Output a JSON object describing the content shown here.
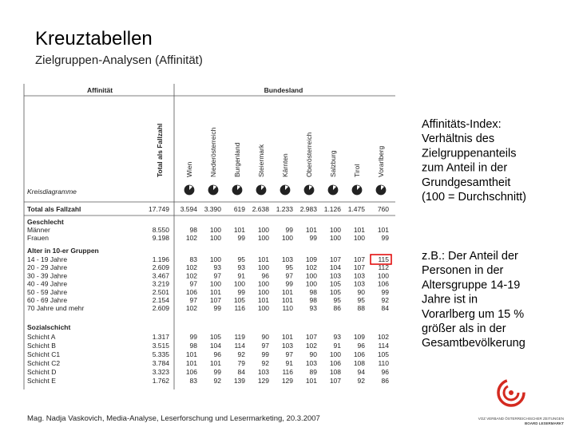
{
  "header": {
    "title": "Kreuztabellen",
    "subtitle": "Zielgruppen-Analysen (Affinität)"
  },
  "table": {
    "corner": "Affinität",
    "group": "Bundesland",
    "columns": [
      "Total als Fallzahl",
      "Wien",
      "Niederösterreich",
      "Burgenland",
      "Steiermark",
      "Kärnten",
      "Oberösterreich",
      "Salzburg",
      "Tirol",
      "Vorarlberg"
    ],
    "pie_row_label": "Kreisdiagramme",
    "total": {
      "label": "Total als Fallzahl",
      "values": [
        "17.749",
        "3.594",
        "3.390",
        "619",
        "2.638",
        "1.233",
        "2.983",
        "1.126",
        "1.475",
        "760"
      ]
    },
    "sections": [
      {
        "title": "Geschlecht",
        "rows": [
          {
            "label": "Männer",
            "values": [
              "8.550",
              98,
              100,
              101,
              100,
              99,
              101,
              100,
              101,
              101
            ]
          },
          {
            "label": "Frauen",
            "values": [
              "9.198",
              102,
              100,
              99,
              100,
              100,
              99,
              100,
              100,
              99
            ]
          }
        ]
      },
      {
        "title": "Alter in 10-er Gruppen",
        "rows": [
          {
            "label": "14 - 19 Jahre",
            "values": [
              "1.196",
              83,
              100,
              95,
              101,
              103,
              109,
              107,
              107,
              115
            ]
          },
          {
            "label": "20 - 29 Jahre",
            "values": [
              "2.609",
              102,
              93,
              93,
              100,
              95,
              102,
              104,
              107,
              112
            ]
          },
          {
            "label": "30 - 39 Jahre",
            "values": [
              "3.467",
              102,
              97,
              91,
              96,
              97,
              100,
              103,
              103,
              100
            ]
          },
          {
            "label": "40 - 49 Jahre",
            "values": [
              "3.219",
              97,
              100,
              100,
              100,
              99,
              100,
              105,
              103,
              106
            ]
          },
          {
            "label": "50 - 59 Jahre",
            "values": [
              "2.501",
              106,
              101,
              99,
              100,
              101,
              98,
              105,
              90,
              99
            ]
          },
          {
            "label": "60 - 69 Jahre",
            "values": [
              "2.154",
              97,
              107,
              105,
              101,
              101,
              98,
              95,
              95,
              92
            ]
          },
          {
            "label": "70 Jahre und mehr",
            "values": [
              "2.609",
              102,
              99,
              116,
              100,
              110,
              93,
              86,
              88,
              84
            ]
          }
        ]
      },
      {
        "title": "Sozialschicht",
        "rows": [
          {
            "label": "Schicht A",
            "values": [
              "1.317",
              99,
              105,
              119,
              90,
              101,
              107,
              93,
              109,
              102
            ]
          },
          {
            "label": "Schicht B",
            "values": [
              "3.515",
              98,
              104,
              114,
              97,
              103,
              102,
              91,
              96,
              114
            ]
          },
          {
            "label": "Schicht C1",
            "values": [
              "5.335",
              101,
              96,
              92,
              99,
              97,
              90,
              100,
              106,
              105
            ]
          },
          {
            "label": "Schicht C2",
            "values": [
              "3.784",
              101,
              101,
              79,
              92,
              91,
              103,
              106,
              108,
              110
            ]
          },
          {
            "label": "Schicht D",
            "values": [
              "3.323",
              106,
              99,
              84,
              103,
              116,
              89,
              108,
              94,
              96
            ]
          },
          {
            "label": "Schicht E",
            "values": [
              "1.762",
              83,
              92,
              139,
              129,
              129,
              101,
              107,
              92,
              86
            ]
          }
        ]
      }
    ],
    "highlight": {
      "section": 1,
      "row": 0,
      "column": 9
    }
  },
  "notes": [
    [
      "Affinitäts-Index:",
      "Verhältnis des",
      "Zielgruppenanteils",
      "zum Anteil in der",
      "Grundgesamtheit",
      "(100 = Durchschnitt)"
    ],
    [
      "z.B.: Der Anteil der",
      "Personen in der",
      "Altersgruppe 14-19",
      "Jahre ist in",
      "Vorarlberg um 15 %",
      "größer als in der",
      "Gesamtbevölkerung"
    ]
  ],
  "footer": "Mag. Nadja Vaskovich, Media-Analyse, Leserforschung und Lesermarketing, 20.3.2007",
  "logo": {
    "line1": "VOZ VERBAND ÖSTERREICHISCHER ZEITUNGEN",
    "line2": "BOARD LESERMARKT"
  }
}
